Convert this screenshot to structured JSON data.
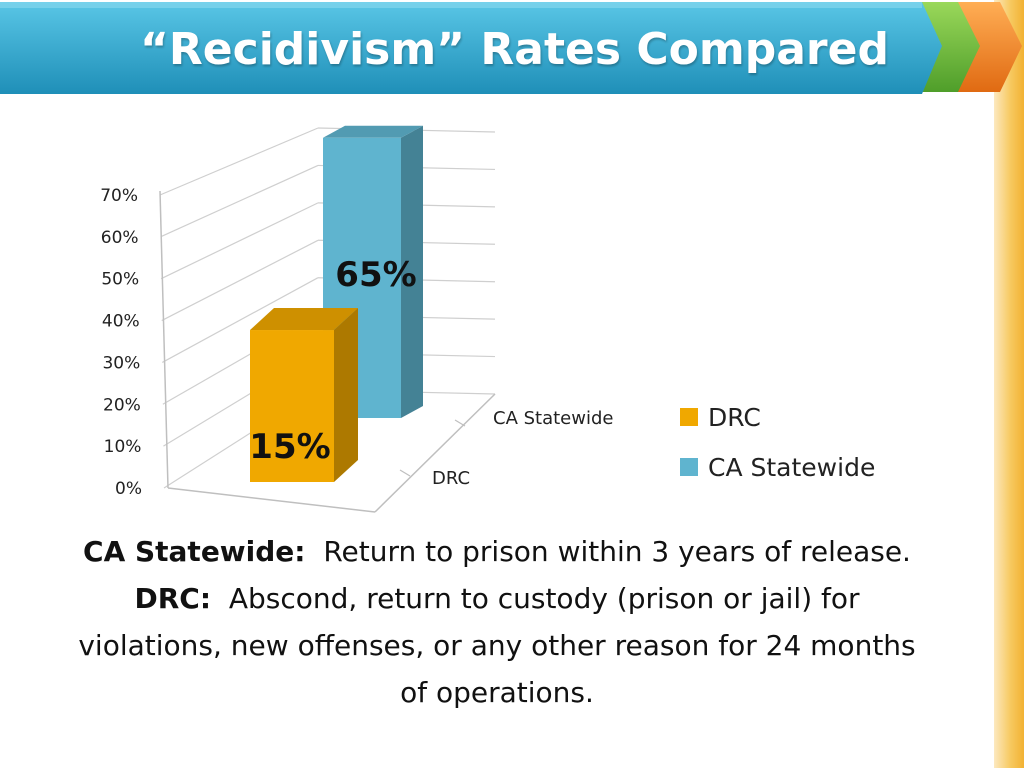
{
  "slide": {
    "title": "“Recidivism” Rates Compared",
    "colors": {
      "banner": "#2aa6cc",
      "arrow_green": "#6fbf3a",
      "arrow_orange": "#f08a24",
      "accent_strip": "#f2b233"
    }
  },
  "chart_data": {
    "type": "bar",
    "three_d": true,
    "categories": [
      "DRC",
      "CA Statewide"
    ],
    "series": [
      {
        "name": "DRC",
        "values": [
          15,
          null
        ],
        "color": "#f0a800"
      },
      {
        "name": "CA Statewide",
        "values": [
          null,
          65
        ],
        "color": "#5fb4cf"
      }
    ],
    "data_labels": [
      "15%",
      "65%"
    ],
    "y_ticks": [
      "0%",
      "10%",
      "20%",
      "30%",
      "40%",
      "50%",
      "60%",
      "70%"
    ],
    "ylim": [
      0,
      70
    ],
    "grid": true,
    "legend_position": "right"
  },
  "notes": {
    "line1_bold": "CA Statewide:",
    "line1_text": "Return to prison within 3 years of release.",
    "line2_bold": "DRC:",
    "line2_text": "Abscond, return to custody (prison or jail) for",
    "line3_text": "violations, new offenses, or any other reason for 24 months",
    "line4_text": "of operations."
  }
}
